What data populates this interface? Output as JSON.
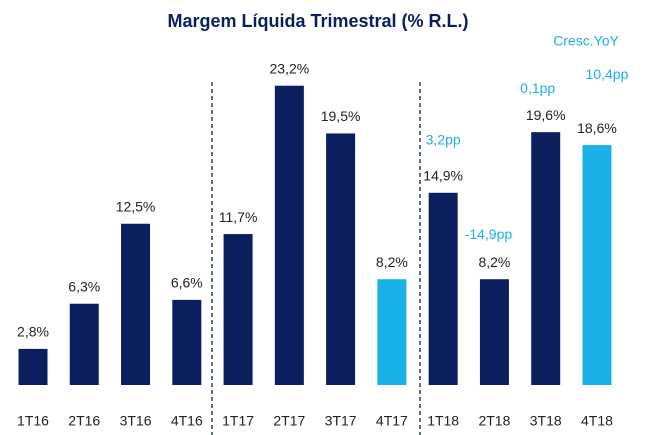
{
  "chart_data": {
    "type": "bar",
    "title": "Margem Líquida Trimestral (% R.L.)",
    "categories": [
      "1T16",
      "2T16",
      "3T16",
      "4T16",
      "1T17",
      "2T17",
      "3T17",
      "4T17",
      "1T18",
      "2T18",
      "3T18",
      "4T18"
    ],
    "values": [
      2.8,
      6.3,
      12.5,
      6.6,
      11.7,
      23.2,
      19.5,
      8.2,
      14.9,
      8.2,
      19.6,
      18.6
    ],
    "value_labels": [
      "2,8%",
      "6,3%",
      "12,5%",
      "6,6%",
      "11,7%",
      "23,2%",
      "19,5%",
      "8,2%",
      "14,9%",
      "8,2%",
      "19,6%",
      "18,6%"
    ],
    "colors": [
      "#0b1f5e",
      "#0b1f5e",
      "#0b1f5e",
      "#0b1f5e",
      "#0b1f5e",
      "#0b1f5e",
      "#0b1f5e",
      "#1ab0e8",
      "#0b1f5e",
      "#0b1f5e",
      "#0b1f5e",
      "#1ab0e8"
    ],
    "yoy": {
      "label": "Cresc.YoY",
      "values": [
        3.2,
        -14.9,
        0.1,
        10.4
      ],
      "value_labels": [
        "3,2pp",
        "-14,9pp",
        "0,1pp",
        "10,4pp"
      ]
    }
  }
}
